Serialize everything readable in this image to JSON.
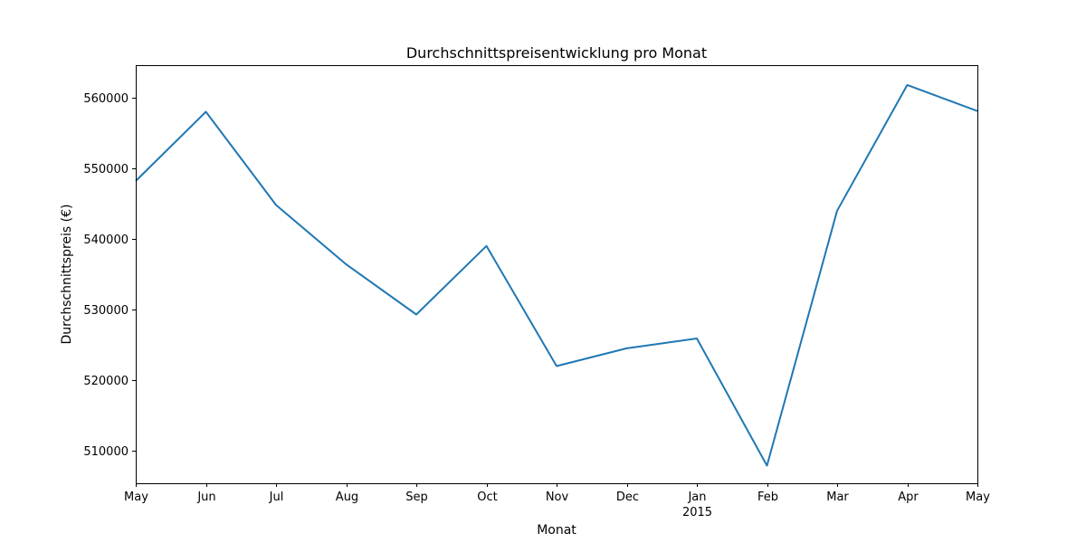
{
  "chart_data": {
    "type": "line",
    "title": "Durchschnittspreisentwicklung pro Monat",
    "xlabel": "Monat",
    "ylabel": "Durchschnittspreis (€)",
    "x": [
      "2014-05",
      "2014-06",
      "2014-07",
      "2014-08",
      "2014-09",
      "2014-10",
      "2014-11",
      "2014-12",
      "2015-01",
      "2015-02",
      "2015-03",
      "2015-04",
      "2015-05"
    ],
    "x_tick_labels": [
      "May",
      "Jun",
      "Jul",
      "Aug",
      "Sep",
      "Oct",
      "Nov",
      "Dec",
      "Jan",
      "Feb",
      "Mar",
      "Apr",
      "May"
    ],
    "x_tick_sublabels": {
      "8": "2015"
    },
    "series": [
      {
        "values": [
          548200,
          558000,
          544800,
          536400,
          529300,
          539000,
          522000,
          524500,
          525900,
          507900,
          544000,
          561800,
          558100
        ],
        "color": "#1f77b4"
      }
    ],
    "ylim": [
      505400,
      564600
    ],
    "yticks": [
      510000,
      520000,
      530000,
      540000,
      550000,
      560000
    ],
    "grid": false,
    "legend": "none"
  }
}
